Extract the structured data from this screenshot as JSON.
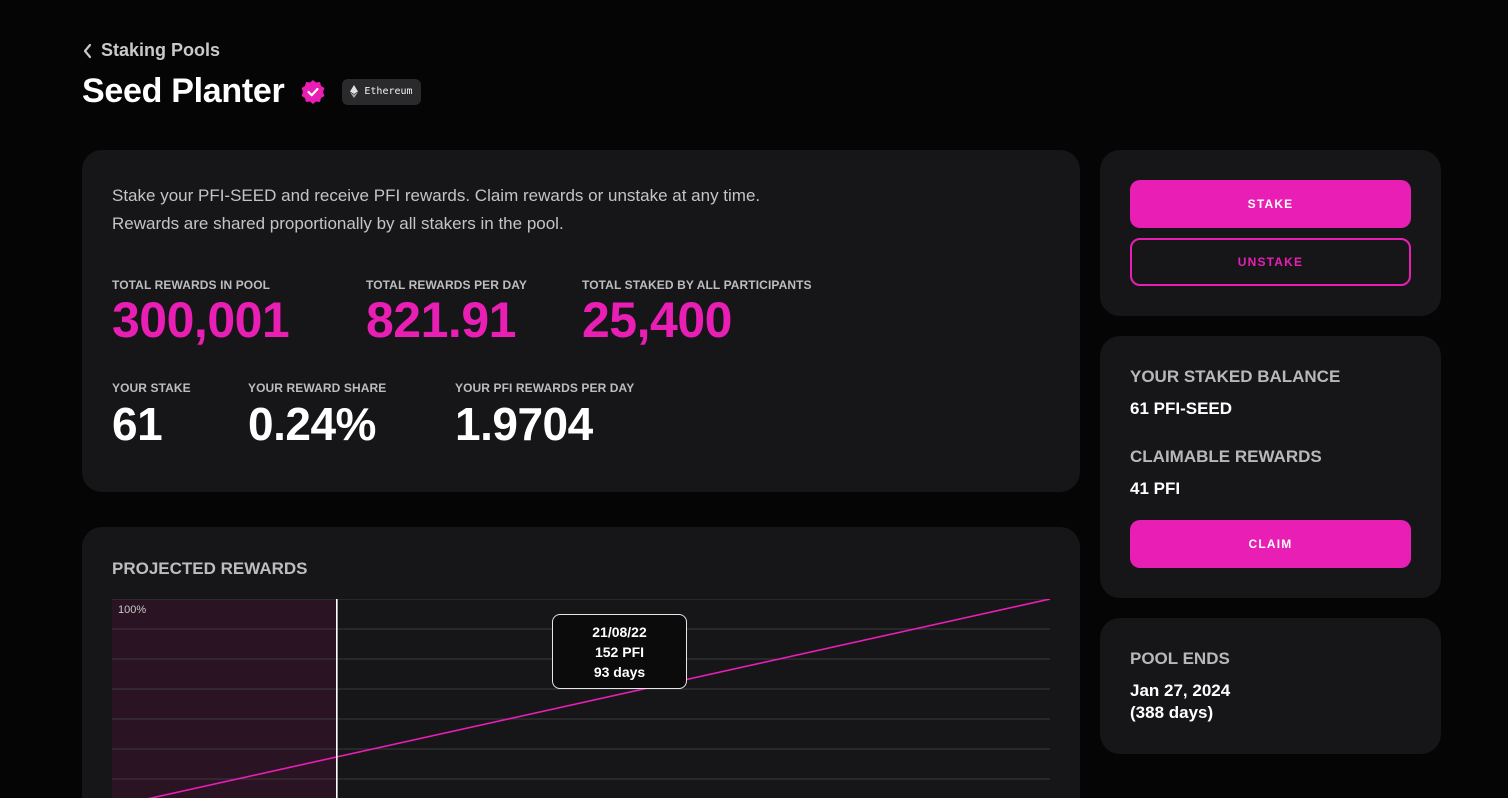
{
  "header": {
    "back_label": "Staking Pools",
    "title": "Seed Planter",
    "chain_badge": "Ethereum",
    "verified_icon": "verified-badge-icon"
  },
  "info": {
    "description_line1": "Stake your PFI-SEED and receive PFI rewards. Claim rewards or unstake at any time.",
    "description_line2": "Rewards are shared proportionally by all stakers in the pool.",
    "total_rewards_label": "TOTAL REWARDS IN POOL",
    "total_rewards_value": "300,001",
    "rewards_per_day_label": "TOTAL REWARDS PER DAY",
    "rewards_per_day_value": "821.91",
    "total_staked_label": "TOTAL STAKED BY ALL PARTICIPANTS",
    "total_staked_value": "25,400",
    "your_stake_label": "YOUR STAKE",
    "your_stake_value": "61",
    "reward_share_label": "YOUR REWARD SHARE",
    "reward_share_value": "0.24%",
    "your_rewards_per_day_label": "YOUR PFI REWARDS PER DAY",
    "your_rewards_per_day_value": "1.9704"
  },
  "actions": {
    "stake_label": "STAKE",
    "unstake_label": "UNSTAKE"
  },
  "balance": {
    "staked_balance_label": "YOUR STAKED BALANCE",
    "staked_balance_value": "61 PFI-SEED",
    "claimable_label": "CLAIMABLE REWARDS",
    "claimable_value": "41 PFI",
    "claim_label": "CLAIM"
  },
  "pool_end": {
    "label": "POOL ENDS",
    "date": "Jan 27, 2024",
    "days": "(388 days)"
  },
  "chart": {
    "title": "PROJECTED REWARDS",
    "y_max_label": "100%",
    "tooltip_date": "21/08/22",
    "tooltip_value": "152 PFI",
    "tooltip_days": "93 days"
  },
  "chart_data": {
    "type": "line",
    "title": "PROJECTED REWARDS",
    "xlabel": "",
    "ylabel": "",
    "y_tick_labels": [
      "100%"
    ],
    "grid": true,
    "x_unit": "days",
    "xlim": [
      0,
      388
    ],
    "series": [
      {
        "values": [
          [
            93,
            152
          ]
        ]
      }
    ],
    "highlight": {
      "x_days": 93,
      "date": "21/08/22",
      "value": "152 PFI"
    }
  },
  "colors": {
    "accent": "#e91eb4",
    "background": "#050505",
    "card": "#161618"
  }
}
